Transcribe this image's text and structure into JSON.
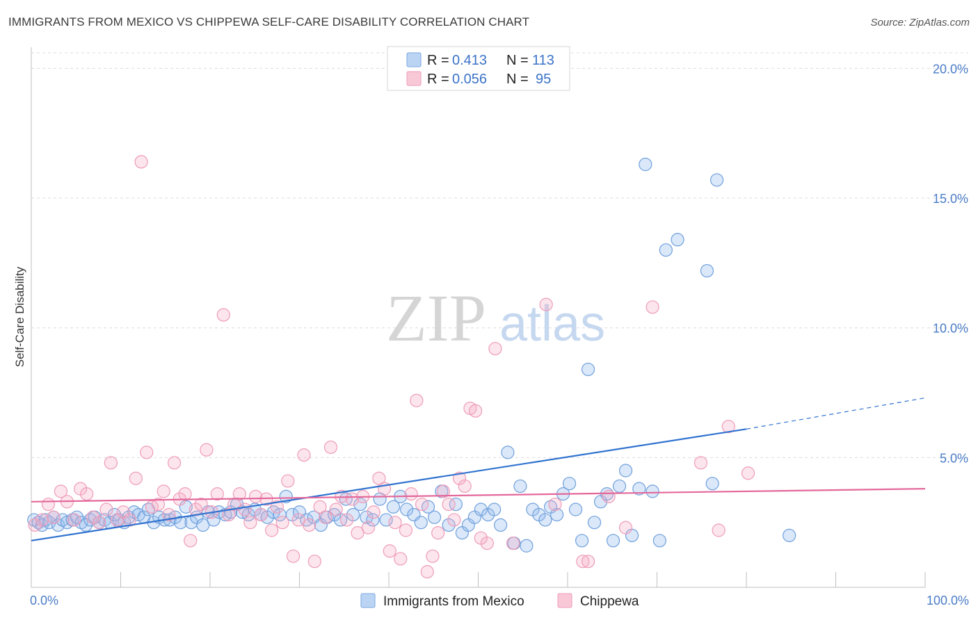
{
  "header": {
    "title": "IMMIGRANTS FROM MEXICO VS CHIPPEWA SELF-CARE DISABILITY CORRELATION CHART",
    "source": "Source: ZipAtlas.com"
  },
  "watermark": {
    "zip": "ZIP",
    "atlas": "atlas"
  },
  "legend_top": {
    "rows": [
      {
        "r_label": "R =",
        "r_value": "0.413",
        "n_label": "N =",
        "n_value": "113",
        "color": "#a9c8ef"
      },
      {
        "r_label": "R =",
        "r_value": "0.056",
        "n_label": "N =",
        "n_value": "95",
        "color": "#f6b6c9"
      }
    ]
  },
  "legend_bottom": [
    {
      "label": "Immigrants from Mexico",
      "color": "#a9c8ef"
    },
    {
      "label": "Chippewa",
      "color": "#f6b6c9"
    }
  ],
  "colors": {
    "blue_fill": "rgba(150,190,238,0.35)",
    "blue_stroke": "#6f9fdc",
    "blue_line": "#2f72cf",
    "pink_fill": "rgba(246,170,196,0.30)",
    "pink_stroke": "#ee9bb8",
    "pink_line": "#e4679a",
    "grid": "#dcdcdc",
    "tick_text": "#4a7cc6"
  },
  "chart_data": {
    "type": "scatter",
    "title": "IMMIGRANTS FROM MEXICO VS CHIPPEWA SELF-CARE DISABILITY CORRELATION CHART",
    "xlabel": "",
    "ylabel": "Self-Care Disability",
    "xlim": [
      0,
      100
    ],
    "ylim": [
      0,
      20.6
    ],
    "x_tick_labels": [
      "0.0%",
      "100.0%"
    ],
    "y_ticks": [
      {
        "value": 5,
        "label": "5.0%"
      },
      {
        "value": 10,
        "label": "10.0%"
      },
      {
        "value": 15,
        "label": "15.0%"
      },
      {
        "value": 20,
        "label": "20.0%"
      }
    ],
    "grid": true,
    "legend_position": "top-center",
    "series": [
      {
        "name": "Immigrants from Mexico",
        "r": 0.413,
        "n": 113,
        "trend": {
          "x0": 0,
          "y0": 1.8,
          "x1": 80,
          "y1": 6.1,
          "dash_to_x": 100,
          "dash_to_y": 7.3
        },
        "points": [
          [
            0.3,
            2.6
          ],
          [
            0.8,
            2.5
          ],
          [
            1.2,
            2.4
          ],
          [
            1.6,
            2.6
          ],
          [
            2.0,
            2.5
          ],
          [
            2.5,
            2.7
          ],
          [
            3.0,
            2.4
          ],
          [
            3.5,
            2.6
          ],
          [
            4.0,
            2.5
          ],
          [
            4.6,
            2.6
          ],
          [
            5.1,
            2.7
          ],
          [
            5.6,
            2.5
          ],
          [
            6.1,
            2.4
          ],
          [
            6.6,
            2.6
          ],
          [
            7.1,
            2.7
          ],
          [
            7.6,
            2.5
          ],
          [
            8.2,
            2.6
          ],
          [
            8.8,
            2.5
          ],
          [
            9.3,
            2.8
          ],
          [
            9.8,
            2.6
          ],
          [
            10.4,
            2.5
          ],
          [
            10.9,
            2.7
          ],
          [
            11.5,
            2.9
          ],
          [
            12.0,
            2.8
          ],
          [
            12.6,
            2.7
          ],
          [
            13.1,
            3.0
          ],
          [
            13.7,
            2.5
          ],
          [
            14.3,
            2.7
          ],
          [
            14.9,
            2.6
          ],
          [
            15.5,
            2.6
          ],
          [
            16.1,
            2.7
          ],
          [
            16.7,
            2.5
          ],
          [
            17.3,
            3.1
          ],
          [
            17.9,
            2.5
          ],
          [
            18.5,
            2.7
          ],
          [
            19.2,
            2.4
          ],
          [
            19.8,
            2.9
          ],
          [
            20.4,
            2.6
          ],
          [
            21.0,
            2.9
          ],
          [
            21.7,
            2.8
          ],
          [
            22.3,
            2.9
          ],
          [
            23.0,
            3.2
          ],
          [
            23.6,
            2.9
          ],
          [
            24.3,
            2.8
          ],
          [
            25.0,
            3.0
          ],
          [
            25.7,
            2.8
          ],
          [
            26.4,
            2.7
          ],
          [
            27.1,
            2.9
          ],
          [
            27.8,
            2.8
          ],
          [
            28.5,
            3.5
          ],
          [
            29.2,
            2.8
          ],
          [
            30.0,
            2.9
          ],
          [
            30.8,
            2.6
          ],
          [
            31.6,
            2.7
          ],
          [
            32.4,
            2.4
          ],
          [
            33.1,
            2.7
          ],
          [
            33.9,
            2.8
          ],
          [
            34.6,
            2.6
          ],
          [
            35.2,
            3.4
          ],
          [
            36.0,
            2.8
          ],
          [
            36.8,
            3.2
          ],
          [
            37.5,
            2.7
          ],
          [
            38.2,
            2.6
          ],
          [
            39.0,
            3.4
          ],
          [
            39.7,
            2.6
          ],
          [
            40.5,
            3.1
          ],
          [
            41.3,
            3.5
          ],
          [
            42.0,
            3.0
          ],
          [
            42.8,
            2.8
          ],
          [
            43.6,
            2.5
          ],
          [
            44.4,
            3.1
          ],
          [
            45.1,
            2.7
          ],
          [
            45.9,
            3.7
          ],
          [
            46.7,
            2.4
          ],
          [
            47.5,
            3.2
          ],
          [
            48.2,
            2.1
          ],
          [
            48.9,
            2.4
          ],
          [
            49.6,
            2.7
          ],
          [
            50.3,
            3.0
          ],
          [
            51.1,
            2.8
          ],
          [
            51.8,
            3.0
          ],
          [
            52.5,
            2.4
          ],
          [
            53.3,
            5.2
          ],
          [
            54.0,
            1.7
          ],
          [
            54.7,
            3.9
          ],
          [
            55.4,
            1.6
          ],
          [
            56.1,
            3.0
          ],
          [
            56.8,
            2.8
          ],
          [
            57.5,
            2.6
          ],
          [
            58.1,
            3.1
          ],
          [
            58.8,
            2.8
          ],
          [
            59.5,
            3.6
          ],
          [
            60.2,
            4.0
          ],
          [
            60.9,
            3.0
          ],
          [
            61.6,
            1.8
          ],
          [
            62.3,
            8.4
          ],
          [
            63.0,
            2.5
          ],
          [
            63.7,
            3.3
          ],
          [
            64.4,
            3.6
          ],
          [
            65.1,
            1.8
          ],
          [
            65.8,
            3.9
          ],
          [
            66.5,
            4.5
          ],
          [
            67.2,
            2.0
          ],
          [
            68.0,
            3.8
          ],
          [
            68.7,
            16.3
          ],
          [
            69.5,
            3.7
          ],
          [
            70.3,
            1.8
          ],
          [
            71.0,
            13.0
          ],
          [
            72.3,
            13.4
          ],
          [
            75.6,
            12.2
          ],
          [
            76.2,
            4.0
          ],
          [
            76.7,
            15.7
          ],
          [
            84.8,
            2.0
          ]
        ]
      },
      {
        "name": "Chippewa",
        "r": 0.056,
        "n": 95,
        "trend": {
          "x0": 0,
          "y0": 3.3,
          "x1": 100,
          "y1": 3.8
        },
        "points": [
          [
            0.4,
            2.4
          ],
          [
            1.2,
            2.6
          ],
          [
            1.9,
            3.2
          ],
          [
            2.5,
            2.7
          ],
          [
            3.3,
            3.7
          ],
          [
            4.0,
            3.3
          ],
          [
            4.8,
            2.6
          ],
          [
            5.5,
            3.8
          ],
          [
            6.2,
            3.6
          ],
          [
            6.9,
            2.7
          ],
          [
            7.6,
            2.5
          ],
          [
            8.4,
            3.0
          ],
          [
            8.9,
            4.8
          ],
          [
            9.6,
            2.6
          ],
          [
            10.3,
            2.9
          ],
          [
            11.0,
            2.6
          ],
          [
            11.7,
            4.2
          ],
          [
            12.3,
            16.4
          ],
          [
            12.9,
            5.2
          ],
          [
            13.5,
            3.1
          ],
          [
            14.2,
            3.2
          ],
          [
            14.8,
            3.7
          ],
          [
            15.4,
            2.8
          ],
          [
            16.0,
            4.8
          ],
          [
            16.6,
            3.4
          ],
          [
            17.2,
            3.6
          ],
          [
            17.8,
            1.8
          ],
          [
            18.4,
            3.0
          ],
          [
            19.0,
            3.2
          ],
          [
            19.6,
            5.3
          ],
          [
            20.2,
            2.9
          ],
          [
            20.8,
            3.6
          ],
          [
            21.5,
            10.5
          ],
          [
            22.1,
            2.8
          ],
          [
            22.7,
            3.2
          ],
          [
            23.3,
            3.6
          ],
          [
            23.9,
            3.0
          ],
          [
            24.5,
            2.5
          ],
          [
            25.1,
            3.5
          ],
          [
            25.7,
            2.8
          ],
          [
            26.3,
            3.4
          ],
          [
            26.9,
            2.2
          ],
          [
            27.5,
            3.1
          ],
          [
            28.1,
            2.5
          ],
          [
            28.7,
            4.1
          ],
          [
            29.3,
            1.2
          ],
          [
            29.9,
            2.6
          ],
          [
            30.5,
            5.1
          ],
          [
            31.1,
            2.4
          ],
          [
            31.7,
            1.0
          ],
          [
            32.3,
            3.1
          ],
          [
            32.9,
            2.7
          ],
          [
            33.5,
            5.4
          ],
          [
            34.1,
            3.0
          ],
          [
            34.7,
            3.5
          ],
          [
            35.3,
            2.6
          ],
          [
            35.9,
            3.4
          ],
          [
            36.5,
            2.1
          ],
          [
            37.1,
            3.5
          ],
          [
            37.7,
            2.3
          ],
          [
            38.3,
            2.9
          ],
          [
            38.9,
            4.2
          ],
          [
            39.5,
            3.8
          ],
          [
            40.1,
            1.4
          ],
          [
            40.7,
            2.5
          ],
          [
            41.3,
            1.1
          ],
          [
            41.9,
            2.2
          ],
          [
            42.5,
            3.6
          ],
          [
            43.1,
            7.2
          ],
          [
            43.7,
            3.2
          ],
          [
            44.3,
            0.6
          ],
          [
            44.9,
            1.2
          ],
          [
            45.5,
            2.1
          ],
          [
            46.1,
            3.7
          ],
          [
            46.7,
            3.2
          ],
          [
            47.3,
            2.6
          ],
          [
            47.9,
            4.2
          ],
          [
            48.5,
            3.9
          ],
          [
            49.1,
            6.9
          ],
          [
            49.7,
            6.8
          ],
          [
            50.3,
            1.9
          ],
          [
            51.0,
            1.7
          ],
          [
            51.9,
            9.2
          ],
          [
            53.9,
            1.7
          ],
          [
            57.6,
            10.9
          ],
          [
            58.6,
            3.2
          ],
          [
            61.7,
            1.0
          ],
          [
            62.3,
            1.0
          ],
          [
            64.6,
            3.5
          ],
          [
            66.5,
            2.3
          ],
          [
            69.5,
            10.8
          ],
          [
            74.9,
            4.8
          ],
          [
            76.9,
            2.2
          ],
          [
            78.0,
            6.2
          ],
          [
            80.2,
            4.4
          ]
        ]
      }
    ]
  }
}
